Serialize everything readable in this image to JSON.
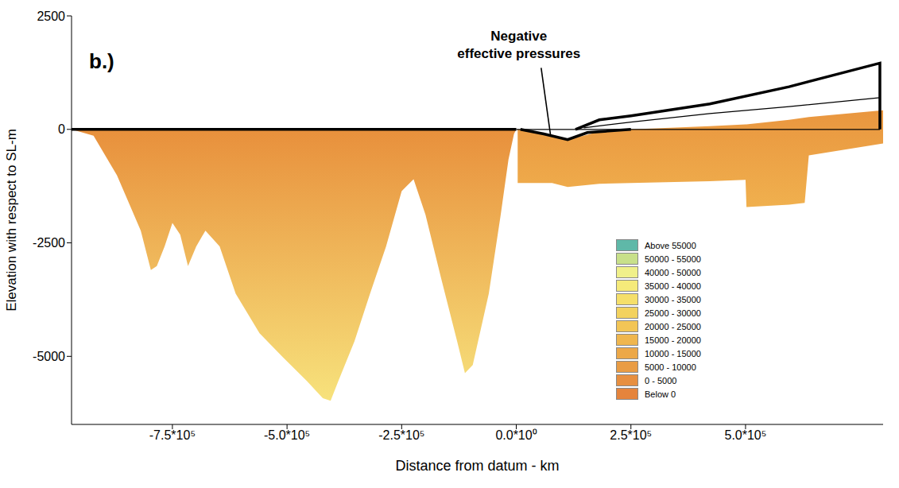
{
  "chart_data": {
    "type": "area",
    "title": "b.)",
    "xlabel": "Distance from datum - km",
    "ylabel": "Elevation with respect to SL-m",
    "xlim": [
      -970000,
      800000
    ],
    "ylim": [
      -6500,
      2500
    ],
    "xticks": [
      {
        "value": -750000,
        "label": "-7.5*10⁵"
      },
      {
        "value": -500000,
        "label": "-5.0*10⁵"
      },
      {
        "value": -250000,
        "label": "-2.5*10⁵"
      },
      {
        "value": 0,
        "label": "0.0*10⁰"
      },
      {
        "value": 250000,
        "label": "2.5*10⁵"
      },
      {
        "value": 500000,
        "label": "5.0*10⁵"
      }
    ],
    "yticks": [
      2500,
      0,
      -2500,
      -5000
    ],
    "grid": false,
    "series": [
      {
        "type": "range_area",
        "color": "#e8903c",
        "x": [
          -970000,
          -922000,
          -871000,
          -819000,
          -797000,
          -784000,
          -767000,
          -750000,
          -733000,
          -716000,
          -698000,
          -678000,
          -647000,
          -612000,
          -560000,
          -509000,
          -457000,
          -422000,
          -405000,
          -388000,
          -353000,
          -319000,
          -284000,
          -250000,
          -224000,
          -198000,
          -164000,
          -129000,
          -112000,
          -95000,
          -60000,
          -34000,
          -17000,
          -5000,
          0
        ],
        "low": [
          0,
          -140,
          -1010,
          -2230,
          -3100,
          -3010,
          -2580,
          -2060,
          -2320,
          -3010,
          -2580,
          -2230,
          -2580,
          -3620,
          -4490,
          -5020,
          -5540,
          -5920,
          -5980,
          -5540,
          -4670,
          -3620,
          -2580,
          -1360,
          -1100,
          -1880,
          -3280,
          -4670,
          -5370,
          -5190,
          -3620,
          -1880,
          -660,
          -100,
          0
        ],
        "high": [
          0,
          0,
          0,
          0,
          0,
          0,
          0,
          0,
          0,
          0,
          0,
          0,
          0,
          0,
          0,
          0,
          0,
          0,
          0,
          0,
          0,
          0,
          0,
          0,
          0,
          0,
          0,
          0,
          0,
          0,
          0,
          0,
          0,
          0,
          0
        ]
      },
      {
        "type": "range_area",
        "color": "#e9963f",
        "x": [
          3000,
          78000,
          112000,
          181000,
          250000,
          422000,
          500000,
          502000,
          595000,
          629000,
          638000,
          800000
        ],
        "low": [
          -1180,
          -1180,
          -1270,
          -1200,
          -1180,
          -1140,
          -1110,
          -1710,
          -1660,
          -1620,
          -575,
          -310
        ],
        "high": [
          0,
          -140,
          -225,
          -50,
          0,
          70,
          110,
          110,
          210,
          260,
          270,
          420
        ]
      },
      {
        "type": "line",
        "color": "#000000",
        "line_style": "thick",
        "x": [
          -970000,
          0
        ],
        "y": [
          0,
          0
        ]
      },
      {
        "type": "line",
        "color": "#000000",
        "line_style": "thin",
        "x": [
          0,
          793000
        ],
        "y": [
          0,
          0
        ]
      },
      {
        "type": "line",
        "color": "#000000",
        "line_style": "thick",
        "x": [
          9000,
          60000,
          112000,
          155000,
          250000
        ],
        "y": [
          0,
          -100,
          -225,
          -70,
          0
        ]
      },
      {
        "type": "line",
        "color": "#000000",
        "line_style": "thick",
        "x": [
          129000,
          181000,
          250000,
          422000,
          595000,
          793000,
          793000
        ],
        "y": [
          0,
          210,
          300,
          560,
          940,
          1460,
          0
        ]
      },
      {
        "type": "line",
        "color": "#000000",
        "line_style": "thin",
        "x": [
          147000,
          250000,
          422000,
          595000,
          793000
        ],
        "y": [
          35,
          160,
          350,
          500,
          700
        ]
      }
    ],
    "annotations": [
      {
        "text": "Negative effective pressures",
        "x": 75000,
        "y": -150
      }
    ],
    "color_scale": {
      "bins": [
        {
          "label": "Above 55000",
          "color": "#5fb8a8"
        },
        {
          "label": "50000 - 55000",
          "color": "#c8e08a"
        },
        {
          "label": "40000 - 50000",
          "color": "#f0f08a"
        },
        {
          "label": "35000 - 40000",
          "color": "#f5ea7a"
        },
        {
          "label": "30000 - 35000",
          "color": "#f5df6a"
        },
        {
          "label": "25000 - 30000",
          "color": "#f3d25e"
        },
        {
          "label": "20000 - 25000",
          "color": "#f2c556"
        },
        {
          "label": "15000 - 20000",
          "color": "#efb64e"
        },
        {
          "label": "10000 - 15000",
          "color": "#eca848"
        },
        {
          "label": "5000 - 10000",
          "color": "#e99c44"
        },
        {
          "label": "0 - 5000",
          "color": "#e78f40"
        },
        {
          "label": "Below 0",
          "color": "#e5843c"
        }
      ]
    }
  }
}
